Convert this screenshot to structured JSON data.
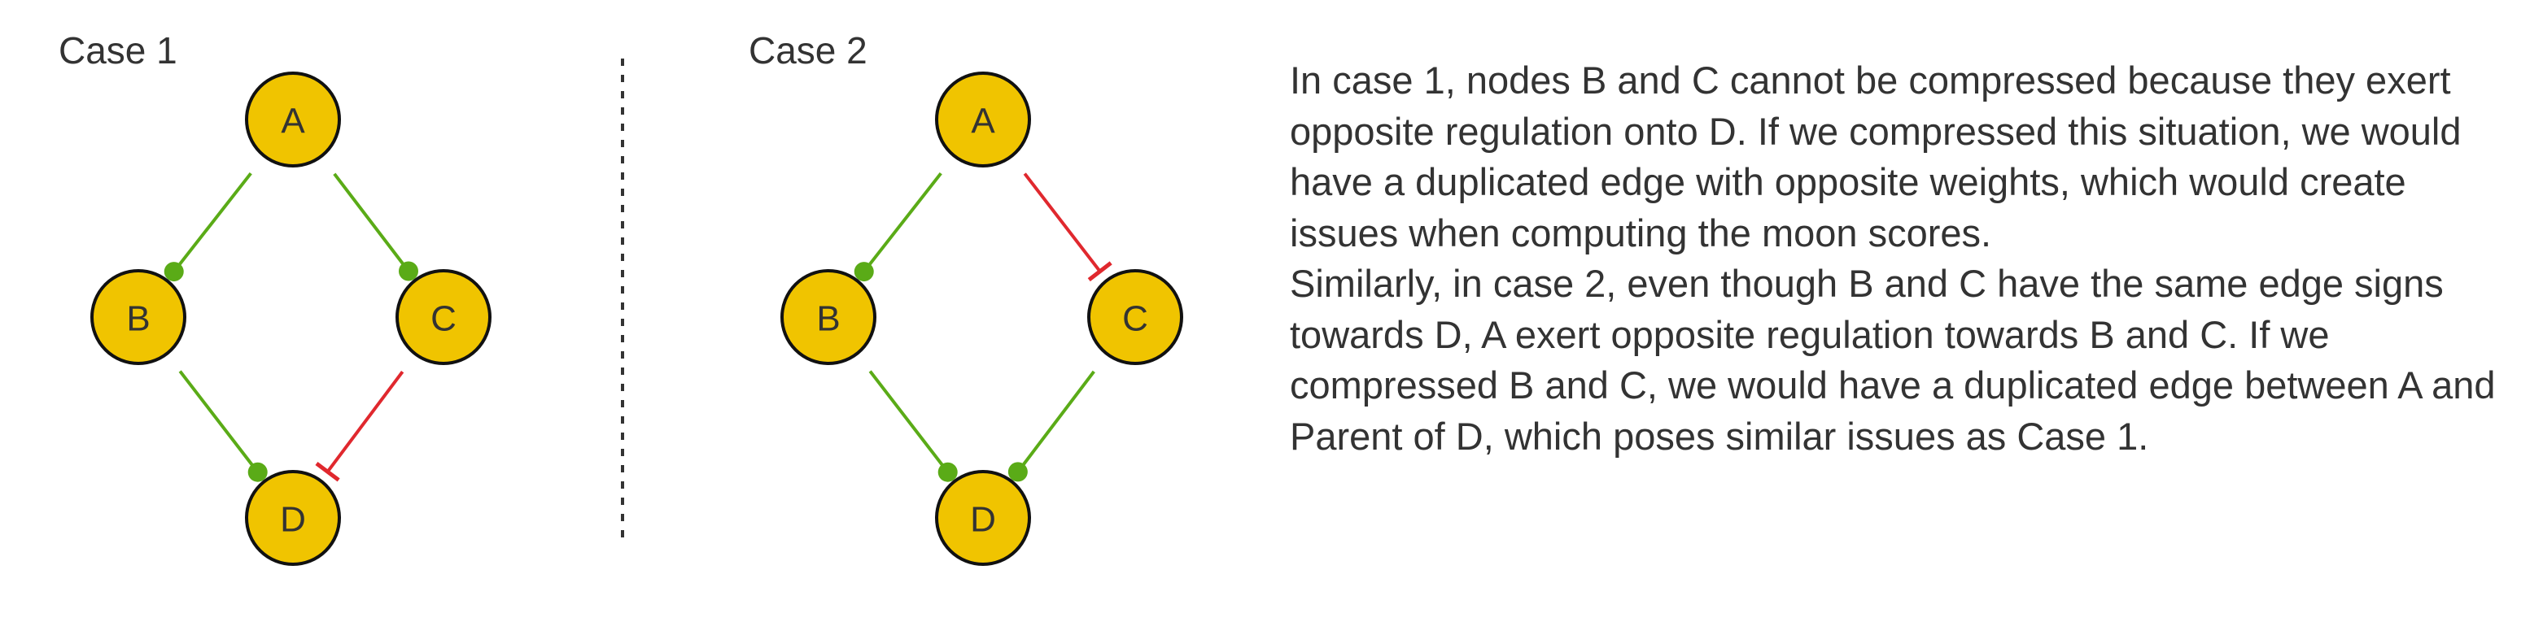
{
  "case1": {
    "title": "Case 1",
    "nodes": {
      "A": "A",
      "B": "B",
      "C": "C",
      "D": "D"
    },
    "edges": [
      {
        "from": "A",
        "to": "B",
        "sign": "activation"
      },
      {
        "from": "A",
        "to": "C",
        "sign": "activation"
      },
      {
        "from": "B",
        "to": "D",
        "sign": "activation"
      },
      {
        "from": "C",
        "to": "D",
        "sign": "inhibition"
      }
    ]
  },
  "case2": {
    "title": "Case 2",
    "nodes": {
      "A": "A",
      "B": "B",
      "C": "C",
      "D": "D"
    },
    "edges": [
      {
        "from": "A",
        "to": "B",
        "sign": "activation"
      },
      {
        "from": "A",
        "to": "C",
        "sign": "inhibition"
      },
      {
        "from": "B",
        "to": "D",
        "sign": "activation"
      },
      {
        "from": "C",
        "to": "D",
        "sign": "activation"
      }
    ]
  },
  "colors": {
    "node_fill": "#f0c400",
    "node_stroke": "#111111",
    "activation": "#5aab17",
    "inhibition": "#e0282e",
    "text": "#333333"
  },
  "explanation": {
    "paragraph1_lines": [
      "In case 1, nodes B and C cannot be compressed because they exert",
      "opposite regulation onto D. If we compressed this situation, we would",
      "have a duplicated edge with opposite weights, which would create",
      "issues when computing the moon scores."
    ],
    "paragraph2_lines": [
      "Similarly, in case 2, even though B and C have the same edge signs",
      "towards D, A exert opposite regulation towards B and C. If we",
      "compressed B and C, we would have a duplicated edge between A and",
      "Parent of D, which poses similar issues as Case 1."
    ]
  }
}
